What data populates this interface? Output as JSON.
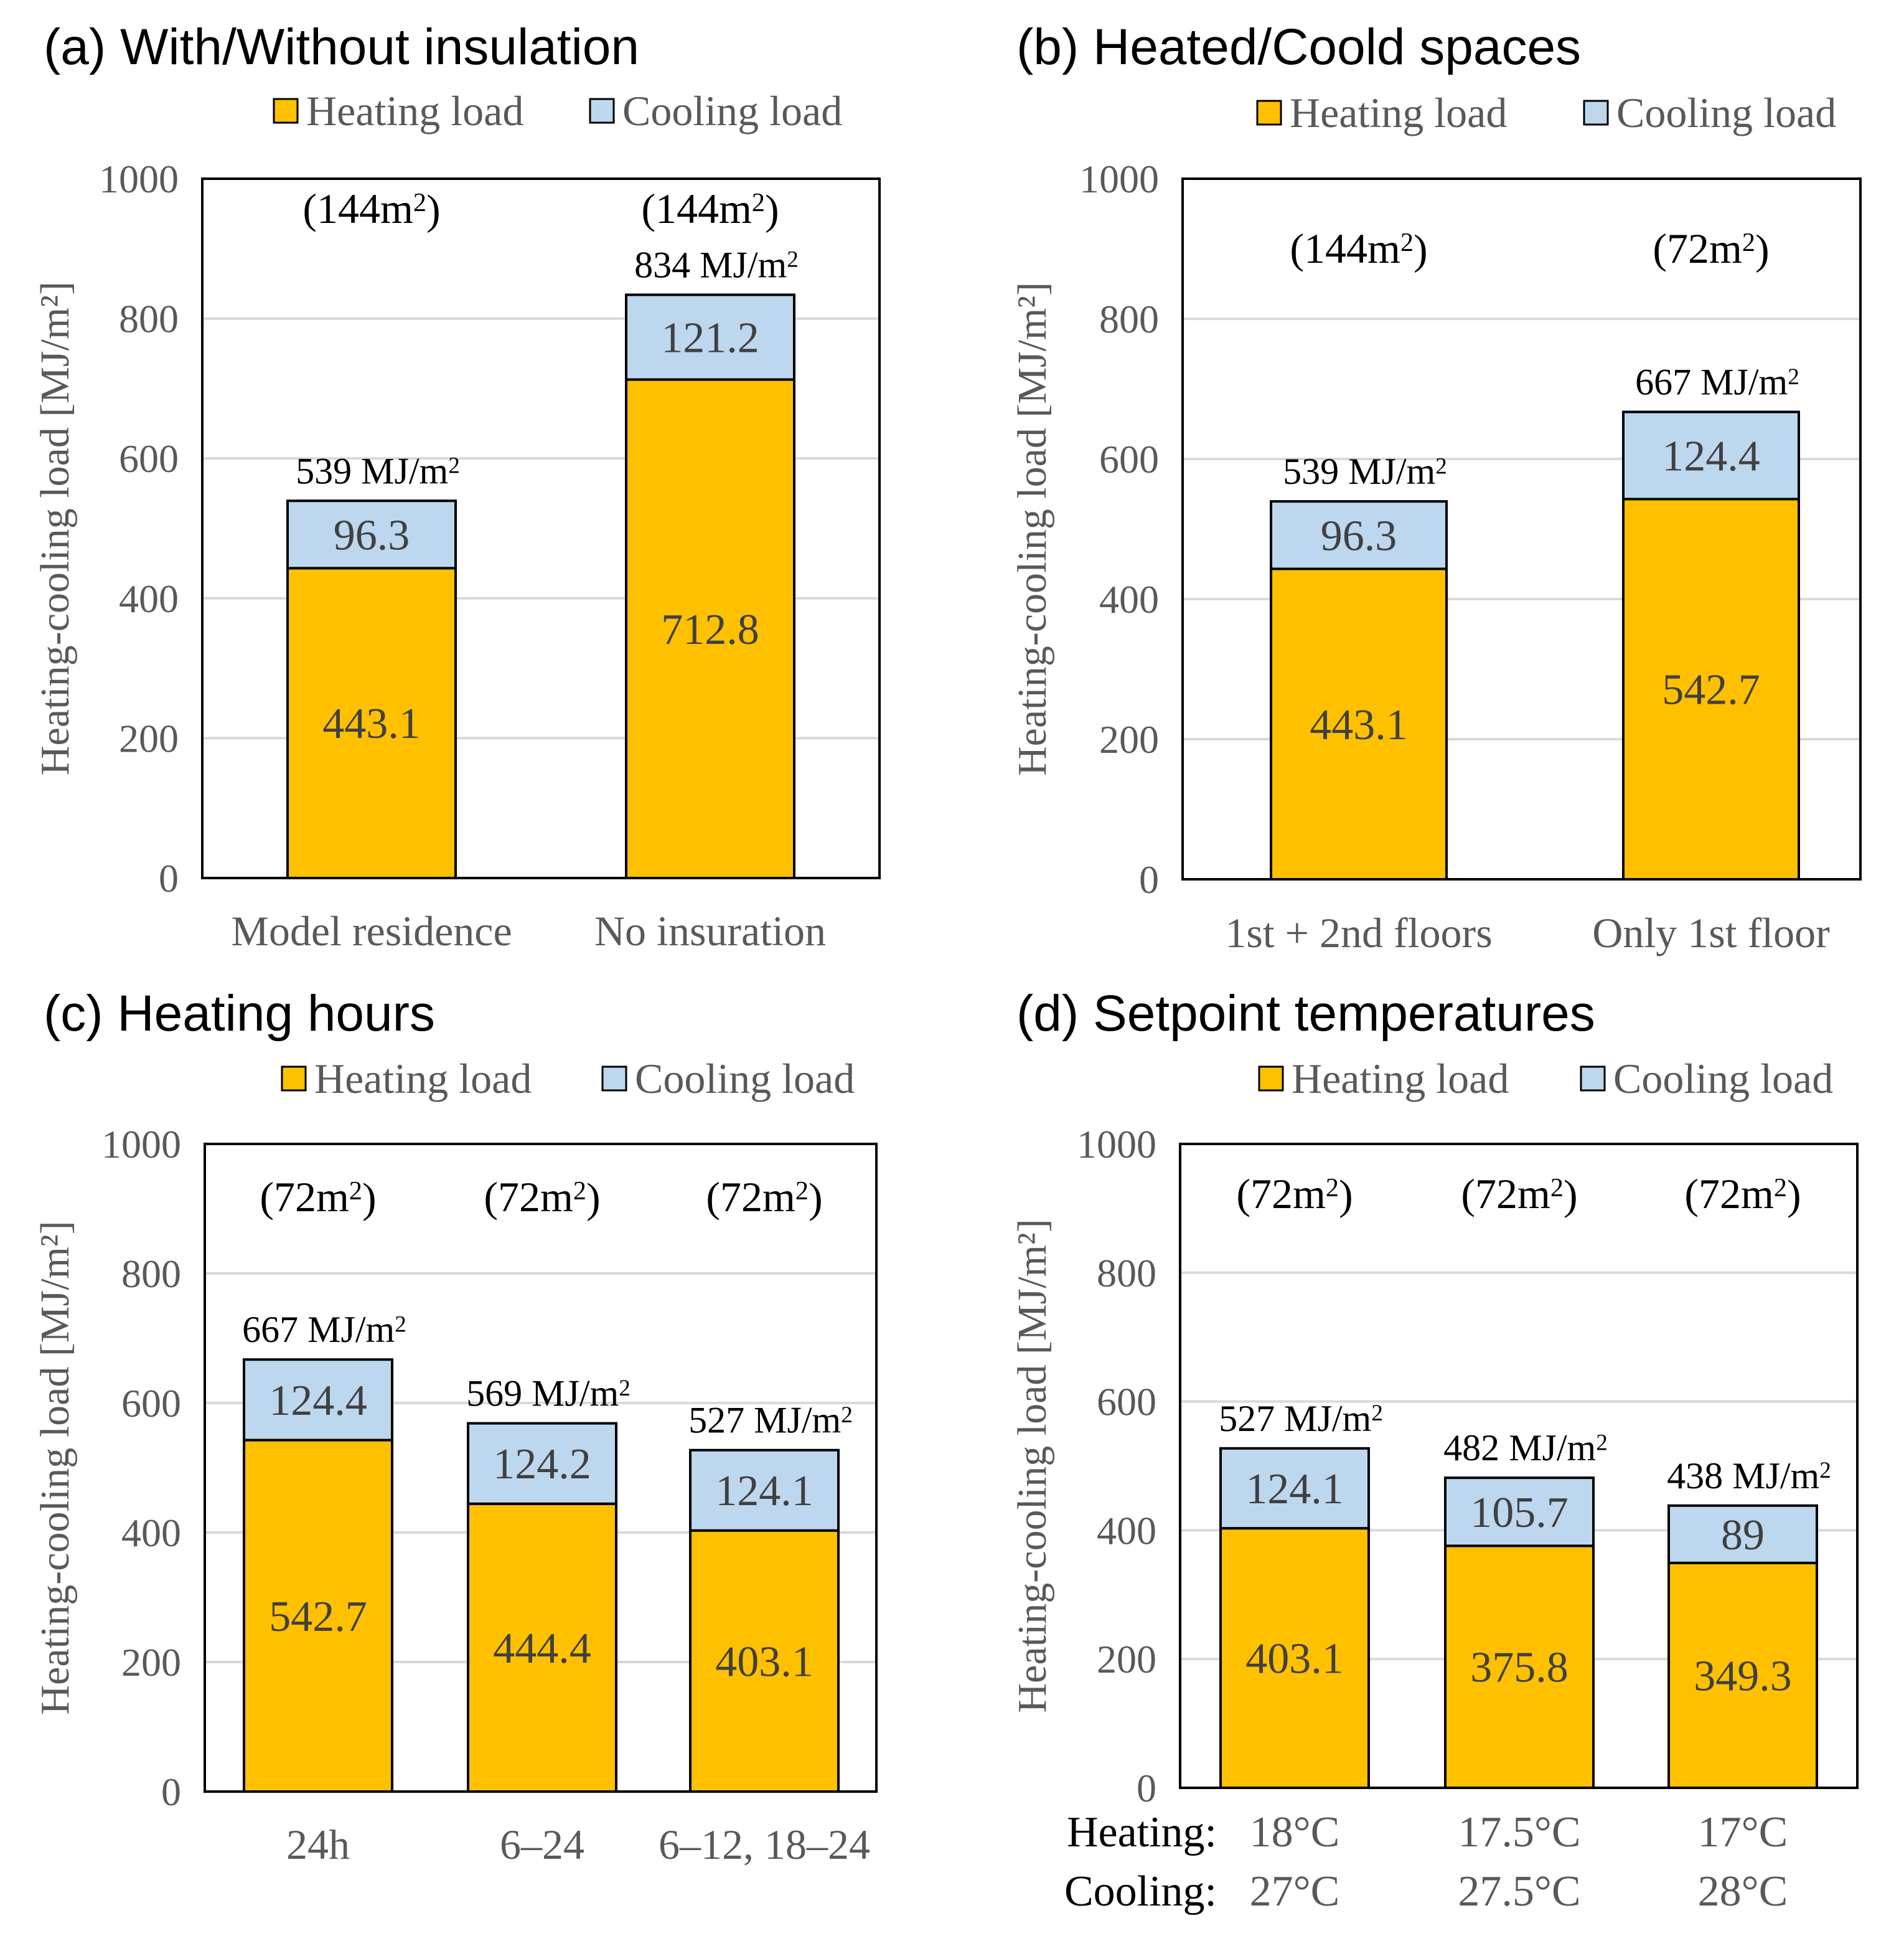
{
  "colors": {
    "heating": "#ffc000",
    "cooling": "#bdd7ee",
    "gridline": "#d9d9d9",
    "frame": "#000000",
    "tick_text": "#595959"
  },
  "legend": {
    "heating_label": "Heating load",
    "cooling_label": "Cooling load"
  },
  "y_axis_label": "Heating-cooling load [MJ/m²]",
  "total_unit": "MJ/m",
  "area_unit": "m",
  "setpoint_labels": {
    "heating": "Heating:",
    "cooling": "Cooling:"
  },
  "chart_data": [
    {
      "panel": "a",
      "type": "bar",
      "stacked": true,
      "title": "(a) With/Without insulation",
      "ylabel": "Heating-cooling load [MJ/m²]",
      "ylim": [
        0,
        1000
      ],
      "yticks": [
        "0",
        "200",
        "400",
        "600",
        "800",
        "1000"
      ],
      "grid": true,
      "legend_position": "top",
      "categories": [
        "Model residence",
        "No insuration"
      ],
      "series": [
        {
          "name": "Heating load",
          "values": [
            443.1,
            712.8
          ],
          "labels": [
            "443.1",
            "712.8"
          ]
        },
        {
          "name": "Cooling load",
          "values": [
            96.3,
            121.2
          ],
          "labels": [
            "96.3",
            "121.2"
          ]
        }
      ],
      "totals": [
        "539",
        "834"
      ],
      "areas": [
        "(144m",
        "(144m"
      ]
    },
    {
      "panel": "b",
      "type": "bar",
      "stacked": true,
      "title": "(b) Heated/Coold spaces",
      "ylabel": "Heating-cooling load [MJ/m²]",
      "ylim": [
        0,
        1000
      ],
      "yticks": [
        "0",
        "200",
        "400",
        "600",
        "800",
        "1000"
      ],
      "grid": true,
      "legend_position": "top",
      "categories": [
        "1st + 2nd floors",
        "Only 1st floor"
      ],
      "series": [
        {
          "name": "Heating load",
          "values": [
            443.1,
            542.7
          ],
          "labels": [
            "443.1",
            "542.7"
          ]
        },
        {
          "name": "Cooling load",
          "values": [
            96.3,
            124.4
          ],
          "labels": [
            "96.3",
            "124.4"
          ]
        }
      ],
      "totals": [
        "539",
        "667"
      ],
      "areas": [
        "(144m",
        "(72m"
      ]
    },
    {
      "panel": "c",
      "type": "bar",
      "stacked": true,
      "title": "(c) Heating hours",
      "ylabel": "Heating-cooling load [MJ/m²]",
      "ylim": [
        0,
        1000
      ],
      "yticks": [
        "0",
        "200",
        "400",
        "600",
        "800",
        "1000"
      ],
      "grid": true,
      "legend_position": "top",
      "categories": [
        "24h",
        "6–24",
        "6–12, 18–24"
      ],
      "series": [
        {
          "name": "Heating load",
          "values": [
            542.7,
            444.4,
            403.1
          ],
          "labels": [
            "542.7",
            "444.4",
            "403.1"
          ]
        },
        {
          "name": "Cooling load",
          "values": [
            124.4,
            124.2,
            124.1
          ],
          "labels": [
            "124.4",
            "124.2",
            "124.1"
          ]
        }
      ],
      "totals": [
        "667",
        "569",
        "527"
      ],
      "areas": [
        "(72m",
        "(72m",
        "(72m"
      ]
    },
    {
      "panel": "d",
      "type": "bar",
      "stacked": true,
      "title": "(d) Setpoint temperatures",
      "ylabel": "Heating-cooling load [MJ/m²]",
      "ylim": [
        0,
        1000
      ],
      "yticks": [
        "0",
        "200",
        "400",
        "600",
        "800",
        "1000"
      ],
      "grid": true,
      "legend_position": "top",
      "categories": [
        "18°C / 27°C",
        "17.5°C / 27.5°C",
        "17°C / 28°C"
      ],
      "heating_setpoints": [
        "18°C",
        "17.5°C",
        "17°C"
      ],
      "cooling_setpoints": [
        "27°C",
        "27.5°C",
        "28°C"
      ],
      "series": [
        {
          "name": "Heating load",
          "values": [
            403.1,
            375.8,
            349.3
          ],
          "labels": [
            "403.1",
            "375.8",
            "349.3"
          ]
        },
        {
          "name": "Cooling load",
          "values": [
            124.1,
            105.7,
            89
          ],
          "labels": [
            "124.1",
            "105.7",
            "89"
          ]
        }
      ],
      "totals": [
        "527",
        "482",
        "438"
      ],
      "areas": [
        "(72m",
        "(72m",
        "(72m"
      ]
    }
  ]
}
